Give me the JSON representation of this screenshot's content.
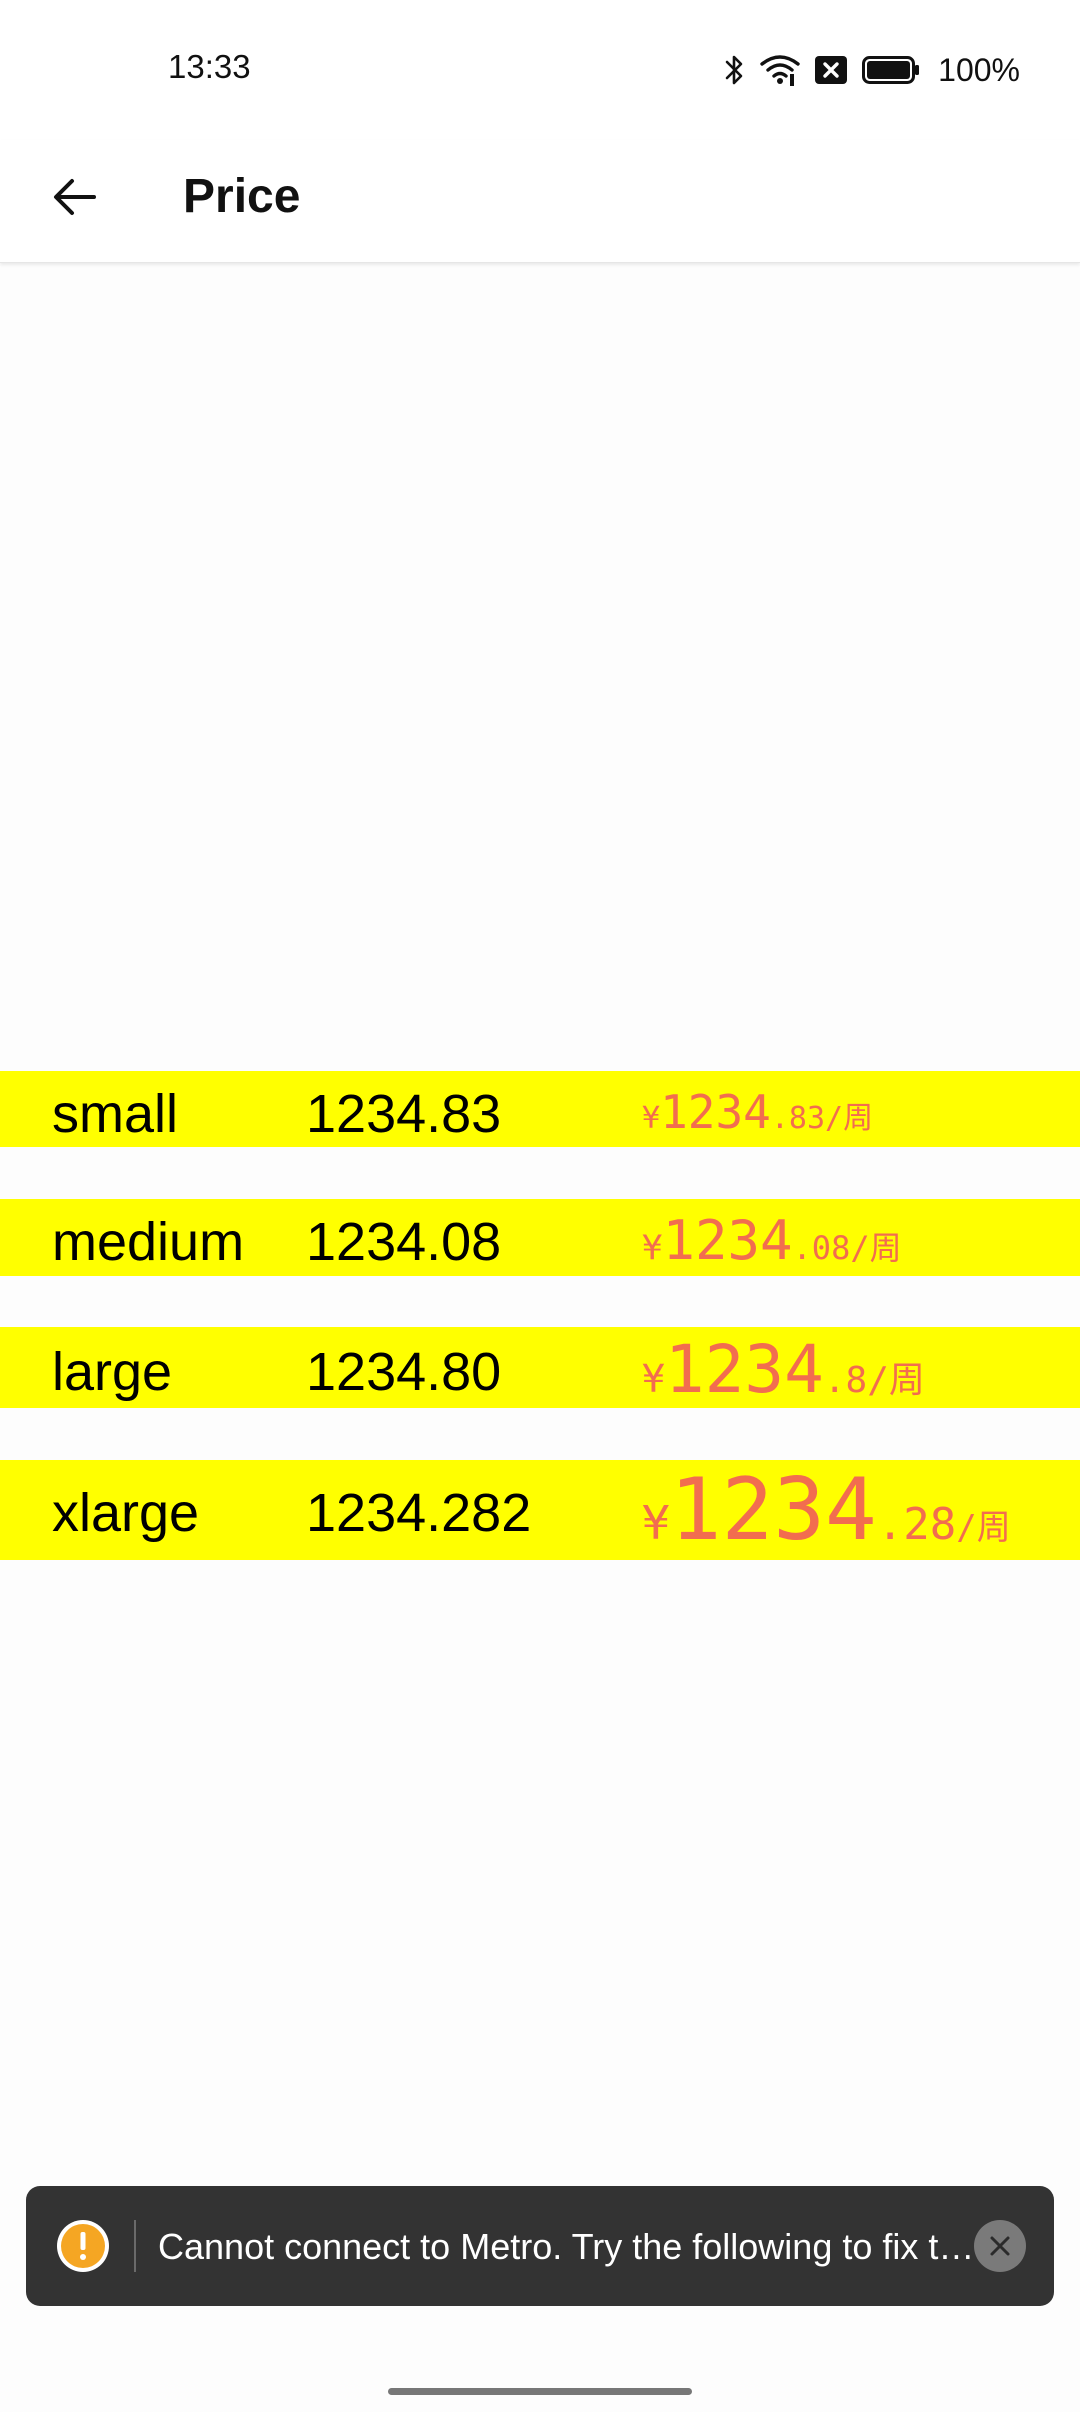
{
  "status_bar": {
    "time": "13:33",
    "battery": "100%",
    "icons": [
      "bluetooth-icon",
      "wifi-icon",
      "no-sim-icon",
      "battery-icon"
    ]
  },
  "app_bar": {
    "title": "Price",
    "back_icon": "arrow-left-icon"
  },
  "rows": [
    {
      "size": "small",
      "raw": "1234.83",
      "price": {
        "symbol": "¥",
        "integer": "1234",
        "decimal": ".83",
        "unit": "/周"
      }
    },
    {
      "size": "medium",
      "raw": "1234.08",
      "price": {
        "symbol": "¥",
        "integer": "1234",
        "decimal": ".08",
        "unit": "/周"
      }
    },
    {
      "size": "large",
      "raw": "1234.80",
      "price": {
        "symbol": "¥",
        "integer": "1234",
        "decimal": ".8",
        "unit": "/周"
      }
    },
    {
      "size": "xlarge",
      "raw": "1234.282",
      "price": {
        "symbol": "¥",
        "integer": "1234",
        "decimal": ".28",
        "unit": "/周"
      }
    }
  ],
  "toast": {
    "message": "Cannot connect to Metro.  Try the following to fix the issue:",
    "icon": "warning-icon",
    "close_icon": "close-icon"
  },
  "colors": {
    "row_background": "#ffff00",
    "price_text": "#f26d4f",
    "toast_background": "#333333",
    "warning": "#f5a623"
  }
}
